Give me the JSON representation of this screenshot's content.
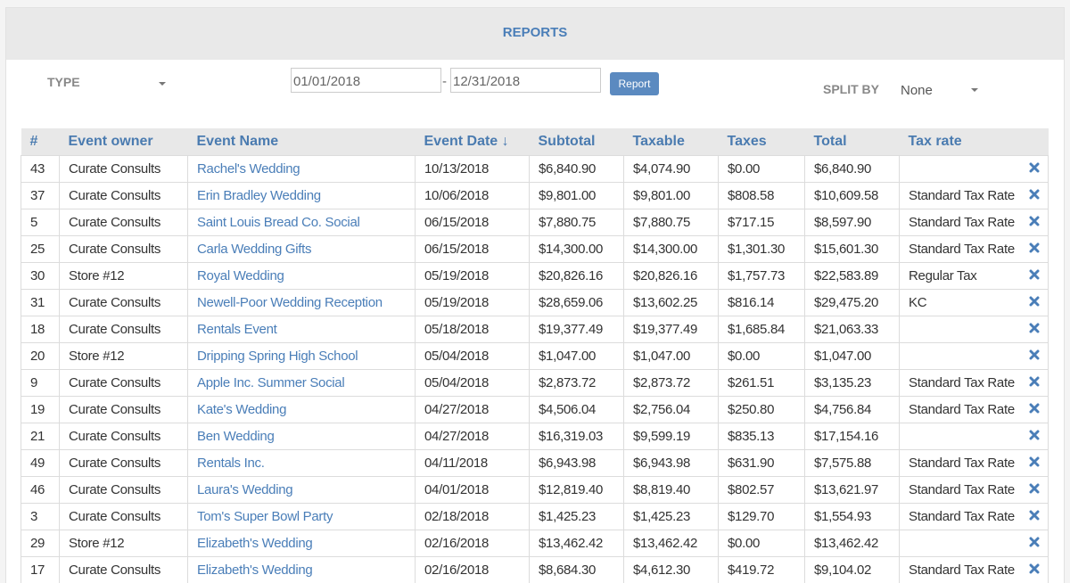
{
  "header": {
    "title": "REPORTS"
  },
  "filters": {
    "type_label": "TYPE",
    "date_from": "01/01/2018",
    "date_separator": "-",
    "date_to": "12/31/2018",
    "button": "Report",
    "split_by_label": "SPLIT BY",
    "split_by_value": "None"
  },
  "table": {
    "columns": [
      "#",
      "Event owner",
      "Event Name",
      "Event Date ↓",
      "Subtotal",
      "Taxable",
      "Taxes",
      "Total",
      "Tax rate"
    ],
    "rows": [
      [
        "43",
        "Curate Consults",
        "Rachel's Wedding",
        "10/13/2018",
        "$6,840.90",
        "$4,074.90",
        "$0.00",
        "$6,840.90",
        null
      ],
      [
        "37",
        "Curate Consults",
        "Erin Bradley Wedding",
        "10/06/2018",
        "$9,801.00",
        "$9,801.00",
        "$808.58",
        "$10,609.58",
        "Standard Tax Rate"
      ],
      [
        "5",
        "Curate Consults",
        "Saint Louis Bread Co. Social",
        "06/15/2018",
        "$7,880.75",
        "$7,880.75",
        "$717.15",
        "$8,597.90",
        "Standard Tax Rate"
      ],
      [
        "25",
        "Curate Consults",
        "Carla Wedding Gifts",
        "06/15/2018",
        "$14,300.00",
        "$14,300.00",
        "$1,301.30",
        "$15,601.30",
        "Standard Tax Rate"
      ],
      [
        "30",
        "Store #12",
        "Royal Wedding",
        "05/19/2018",
        "$20,826.16",
        "$20,826.16",
        "$1,757.73",
        "$22,583.89",
        "Regular Tax"
      ],
      [
        "31",
        "Curate Consults",
        "Newell-Poor Wedding Reception",
        "05/19/2018",
        "$28,659.06",
        "$13,602.25",
        "$816.14",
        "$29,475.20",
        "KC"
      ],
      [
        "18",
        "Curate Consults",
        "Rentals Event",
        "05/18/2018",
        "$19,377.49",
        "$19,377.49",
        "$1,685.84",
        "$21,063.33",
        null
      ],
      [
        "20",
        "Store #12",
        "Dripping Spring High School",
        "05/04/2018",
        "$1,047.00",
        "$1,047.00",
        "$0.00",
        "$1,047.00",
        null
      ],
      [
        "9",
        "Curate Consults",
        "Apple Inc. Summer Social",
        "05/04/2018",
        "$2,873.72",
        "$2,873.72",
        "$261.51",
        "$3,135.23",
        "Standard Tax Rate"
      ],
      [
        "19",
        "Curate Consults",
        "Kate's Wedding",
        "04/27/2018",
        "$4,506.04",
        "$2,756.04",
        "$250.80",
        "$4,756.84",
        "Standard Tax Rate"
      ],
      [
        "21",
        "Curate Consults",
        "Ben Wedding",
        "04/27/2018",
        "$16,319.03",
        "$9,599.19",
        "$835.13",
        "$17,154.16",
        null
      ],
      [
        "49",
        "Curate Consults",
        "Rentals Inc.",
        "04/11/2018",
        "$6,943.98",
        "$6,943.98",
        "$631.90",
        "$7,575.88",
        "Standard Tax Rate"
      ],
      [
        "46",
        "Curate Consults",
        "Laura's Wedding",
        "04/01/2018",
        "$12,819.40",
        "$8,819.40",
        "$802.57",
        "$13,621.97",
        "Standard Tax Rate"
      ],
      [
        "3",
        "Curate Consults",
        "Tom's Super Bowl Party",
        "02/18/2018",
        "$1,425.23",
        "$1,425.23",
        "$129.70",
        "$1,554.93",
        "Standard Tax Rate"
      ],
      [
        "29",
        "Store #12",
        "Elizabeth's Wedding",
        "02/16/2018",
        "$13,462.42",
        "$13,462.42",
        "$0.00",
        "$13,462.42",
        null
      ],
      [
        "17",
        "Curate Consults",
        "Elizabeth's Wedding",
        "02/16/2018",
        "$8,684.30",
        "$4,612.30",
        "$419.72",
        "$9,104.02",
        "Standard Tax Rate"
      ]
    ]
  }
}
